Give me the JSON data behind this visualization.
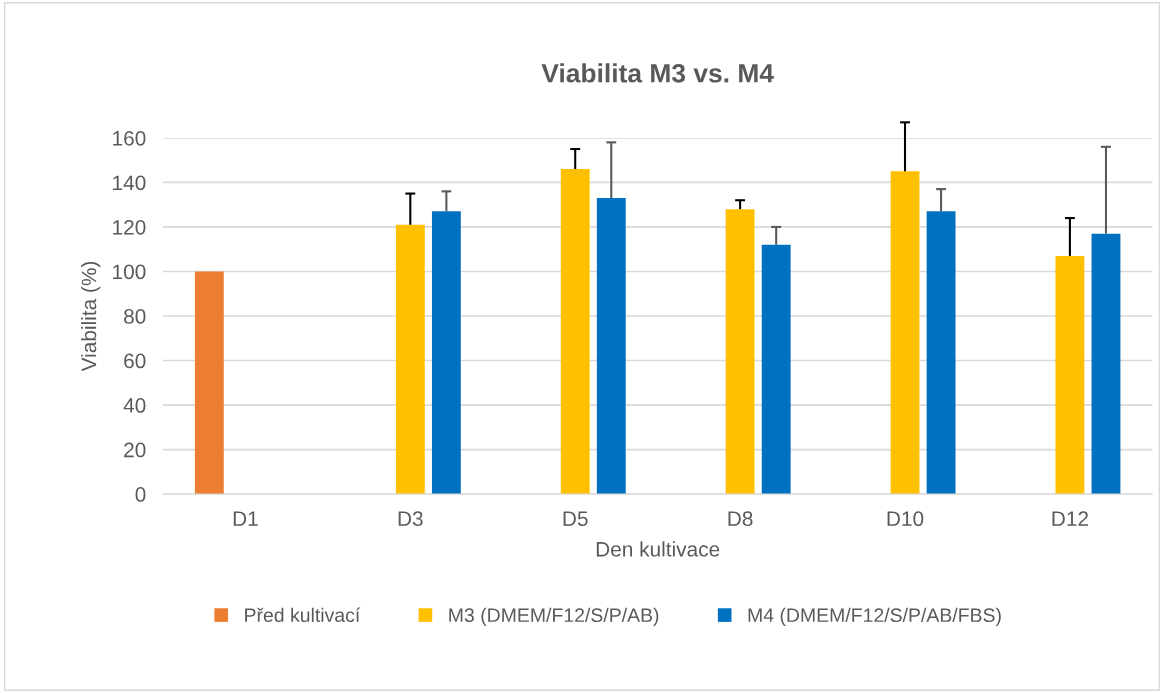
{
  "chart_data": {
    "type": "bar",
    "title": "Viabilita M3 vs. M4",
    "xlabel": "Den kultivace",
    "ylabel": "Viabilita (%)",
    "categories": [
      "D1",
      "D3",
      "D5",
      "D8",
      "D10",
      "D12"
    ],
    "series": [
      {
        "name": "Před kultivací",
        "color": "#ed7d31",
        "values": [
          100,
          null,
          null,
          null,
          null,
          null
        ]
      },
      {
        "name": "M3 (DMEM/F12/S/P/AB)",
        "color": "#ffc000",
        "values": [
          null,
          121,
          146,
          128,
          145,
          107
        ],
        "errors": [
          null,
          [
            121,
            135
          ],
          [
            146,
            155
          ],
          [
            128,
            132
          ],
          [
            145,
            167
          ],
          [
            107,
            124
          ]
        ]
      },
      {
        "name": "M4 (DMEM/F12/S/P/AB/FBS)",
        "color": "#0070c0",
        "values": [
          null,
          127,
          133,
          112,
          127,
          117
        ],
        "errors": [
          null,
          [
            127,
            136
          ],
          [
            133,
            158
          ],
          [
            112,
            120
          ],
          [
            127,
            137
          ],
          [
            117,
            156
          ]
        ]
      }
    ],
    "ylim": [
      0,
      160
    ],
    "yticks": [
      0,
      20,
      40,
      60,
      80,
      100,
      120,
      140,
      160
    ],
    "grid": "y",
    "legend": "bottom"
  }
}
